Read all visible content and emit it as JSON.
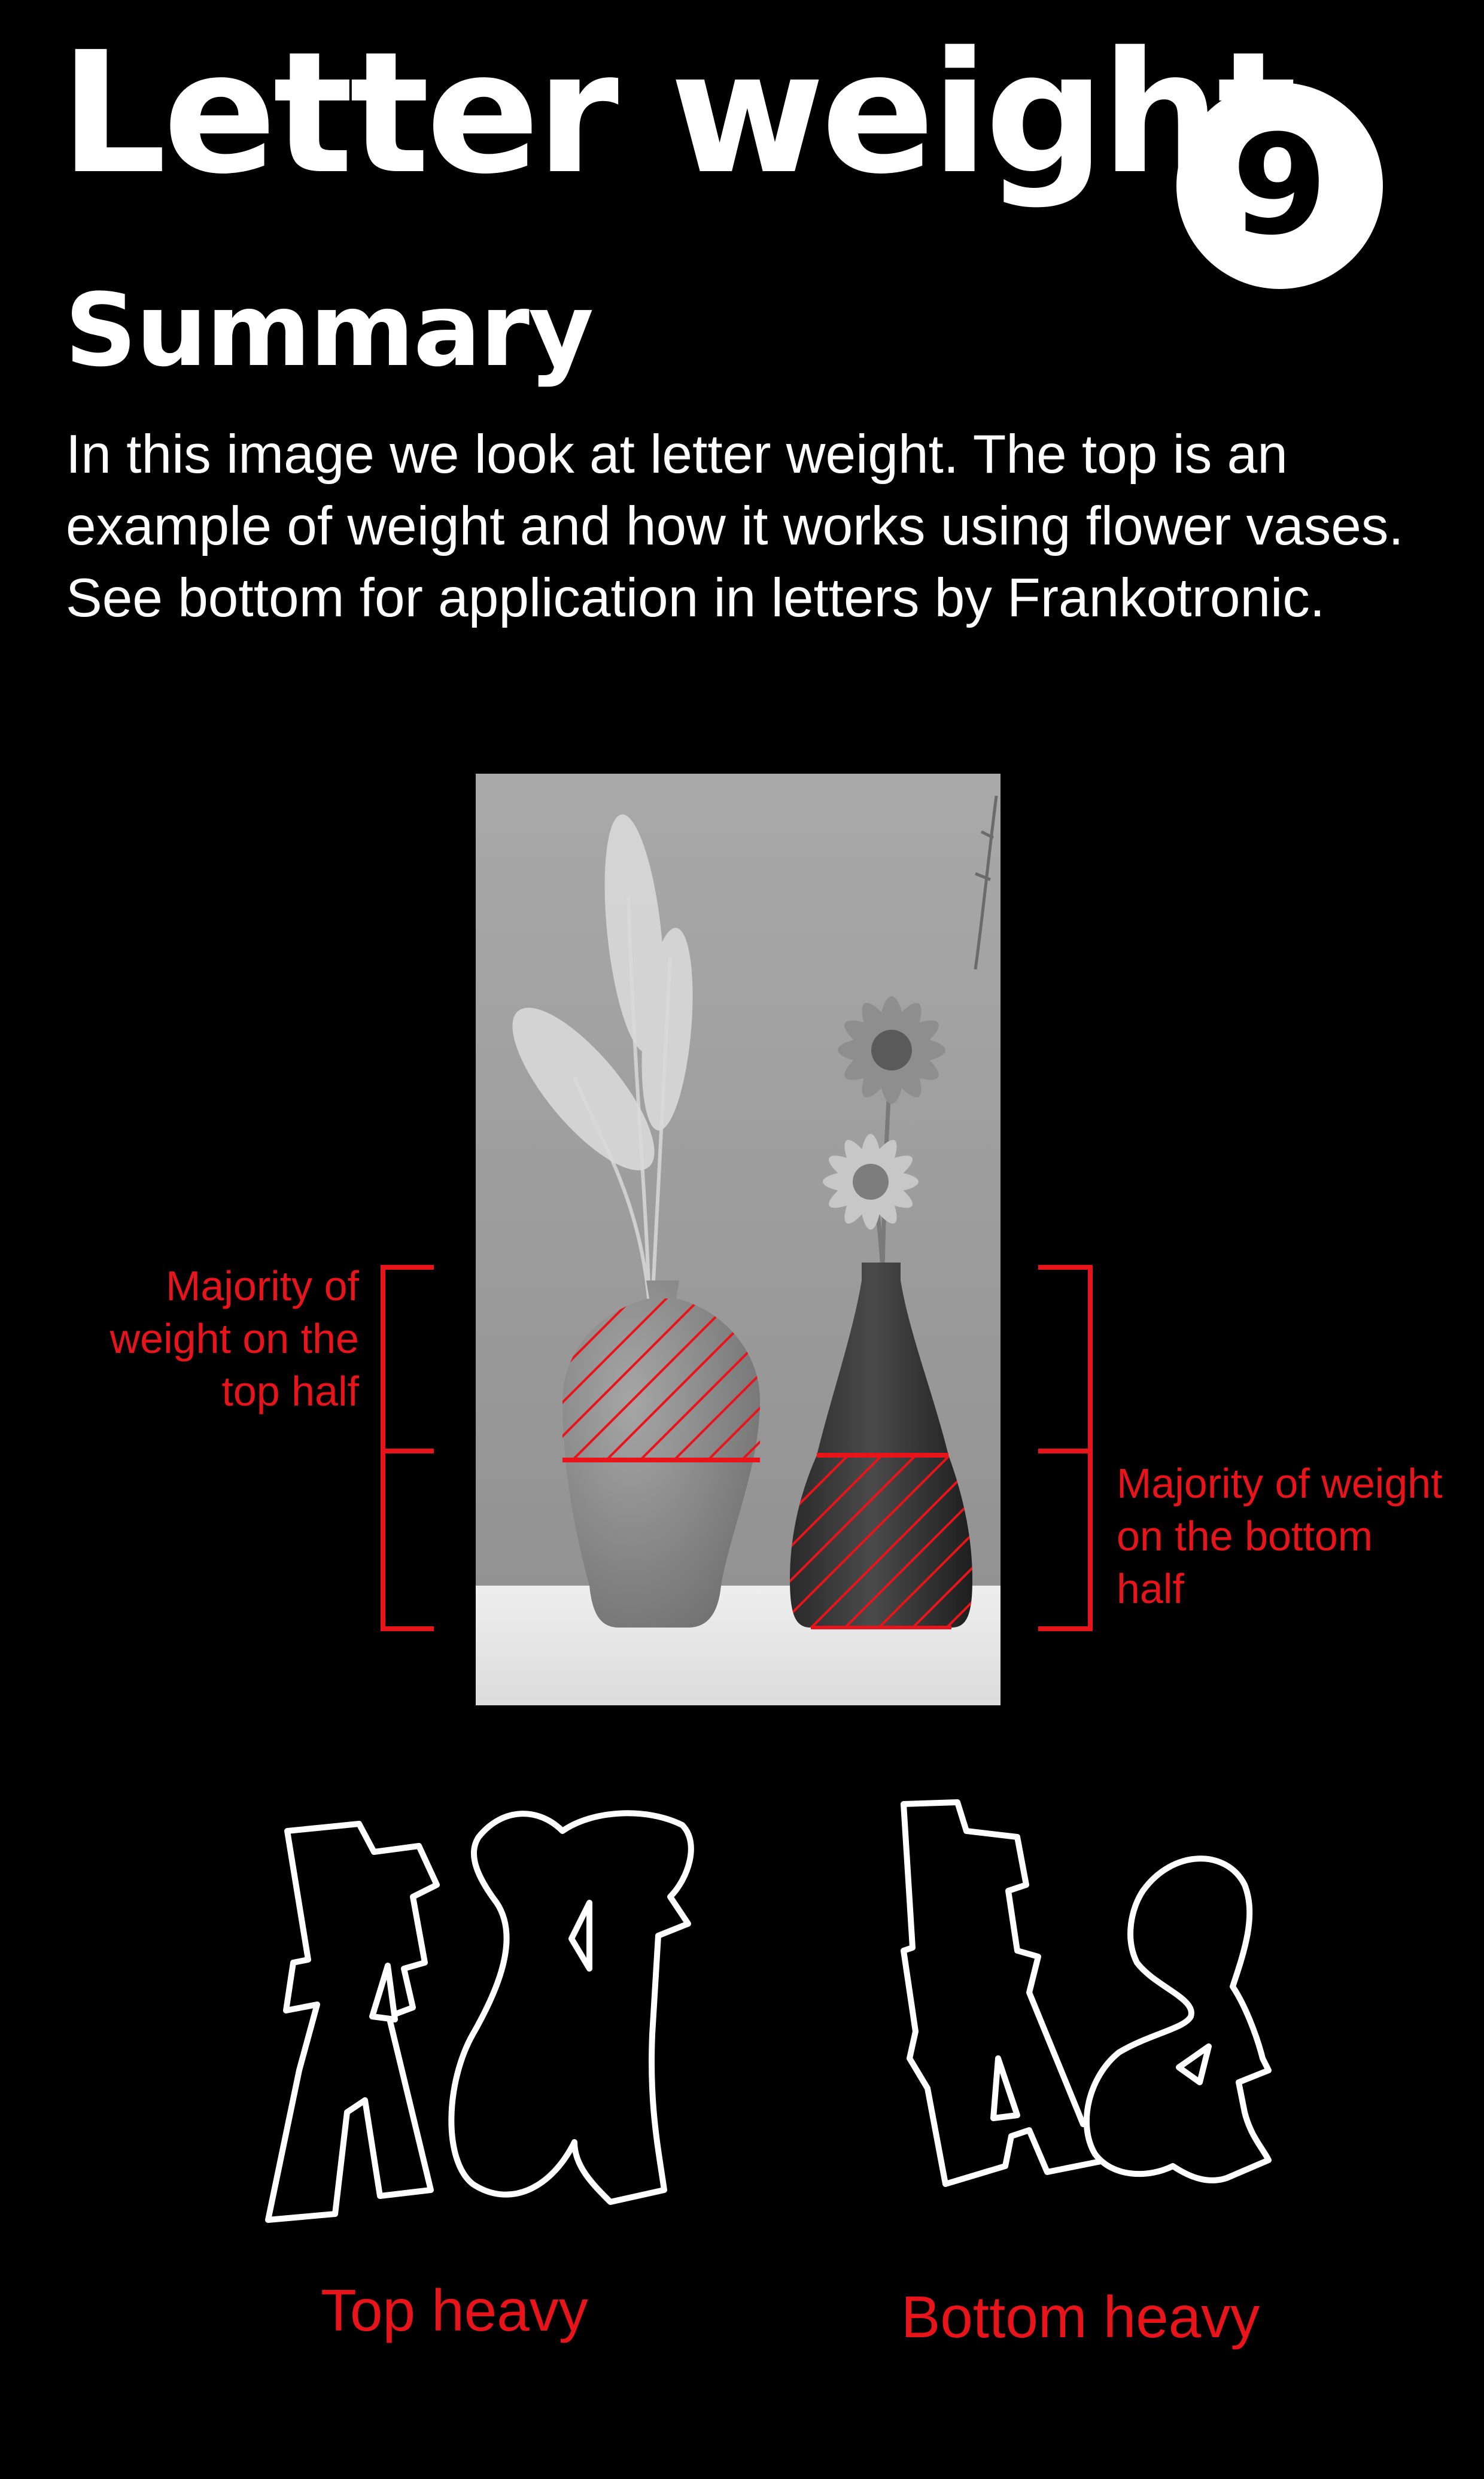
{
  "header": {
    "title": "Letter weight",
    "badge_number": "9"
  },
  "summary": {
    "heading": "Summary",
    "text": "In this image we look at letter weight. The top is an example of weight and how it works using flower vases. See bottom for application in letters by Frankotronic."
  },
  "vase_photo": {
    "left_annotation": "Majority of weight on the top half",
    "right_annotation": "Majority of weight on the bottom half"
  },
  "letters": {
    "top_heavy_caption": "Top heavy",
    "bottom_heavy_caption": "Bottom heavy"
  },
  "colors": {
    "background": "#000000",
    "text": "#ffffff",
    "accent_red": "#e8141a"
  }
}
